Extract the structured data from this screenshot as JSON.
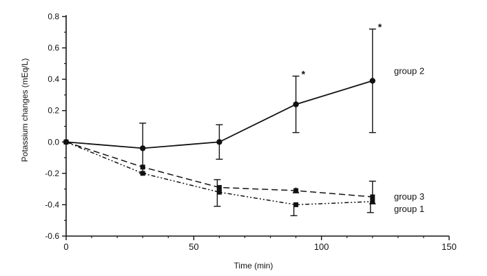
{
  "chart_data": {
    "type": "line",
    "xlabel": "Time (min)",
    "ylabel": "Potassium changes (mEq/L)",
    "xlim": [
      0,
      150
    ],
    "ylim": [
      -0.6,
      0.8
    ],
    "xticks": [
      0,
      50,
      100,
      150
    ],
    "xtick_labels": [
      "0",
      "50",
      "100",
      "150"
    ],
    "yticks": [
      -0.6,
      -0.4,
      -0.2,
      0.0,
      0.2,
      0.4,
      0.6,
      0.8
    ],
    "ytick_labels": [
      "-0.6",
      "-0.4",
      "-0.2",
      "0.0",
      "0.2",
      "0.4",
      "0.6",
      "0.8"
    ],
    "grid": false,
    "series": [
      {
        "name": "group 2",
        "marker": "circle",
        "line_style": "solid",
        "x": [
          0,
          30,
          60,
          90,
          120
        ],
        "y": [
          0.0,
          -0.04,
          0.0,
          0.24,
          0.39
        ],
        "error_low": [
          null,
          -0.2,
          -0.11,
          0.06,
          0.06
        ],
        "error_high": [
          null,
          0.12,
          0.11,
          0.42,
          0.72
        ],
        "significance": [
          null,
          null,
          null,
          "*",
          "*"
        ]
      },
      {
        "name": "group 3",
        "marker": "square",
        "line_style": "dashed",
        "x": [
          0,
          30,
          60,
          90,
          120
        ],
        "y": [
          0.0,
          -0.16,
          -0.29,
          -0.31,
          -0.35
        ],
        "error_low": [
          null,
          null,
          null,
          null,
          null
        ],
        "error_high": [
          null,
          null,
          null,
          null,
          -0.25
        ],
        "significance": [
          null,
          null,
          null,
          null,
          null
        ]
      },
      {
        "name": "group 1",
        "marker": "square",
        "line_style": "dash-dot-dot",
        "x": [
          0,
          30,
          60,
          90,
          120
        ],
        "y": [
          0.0,
          -0.2,
          -0.32,
          -0.4,
          -0.38
        ],
        "error_low": [
          null,
          null,
          -0.41,
          -0.47,
          -0.45
        ],
        "error_high": [
          null,
          null,
          -0.24,
          null,
          null
        ],
        "significance": [
          null,
          null,
          null,
          null,
          null
        ]
      }
    ],
    "series_labels": {
      "group 2": "group 2",
      "group 3": "group 3",
      "group 1": "group 1"
    }
  }
}
